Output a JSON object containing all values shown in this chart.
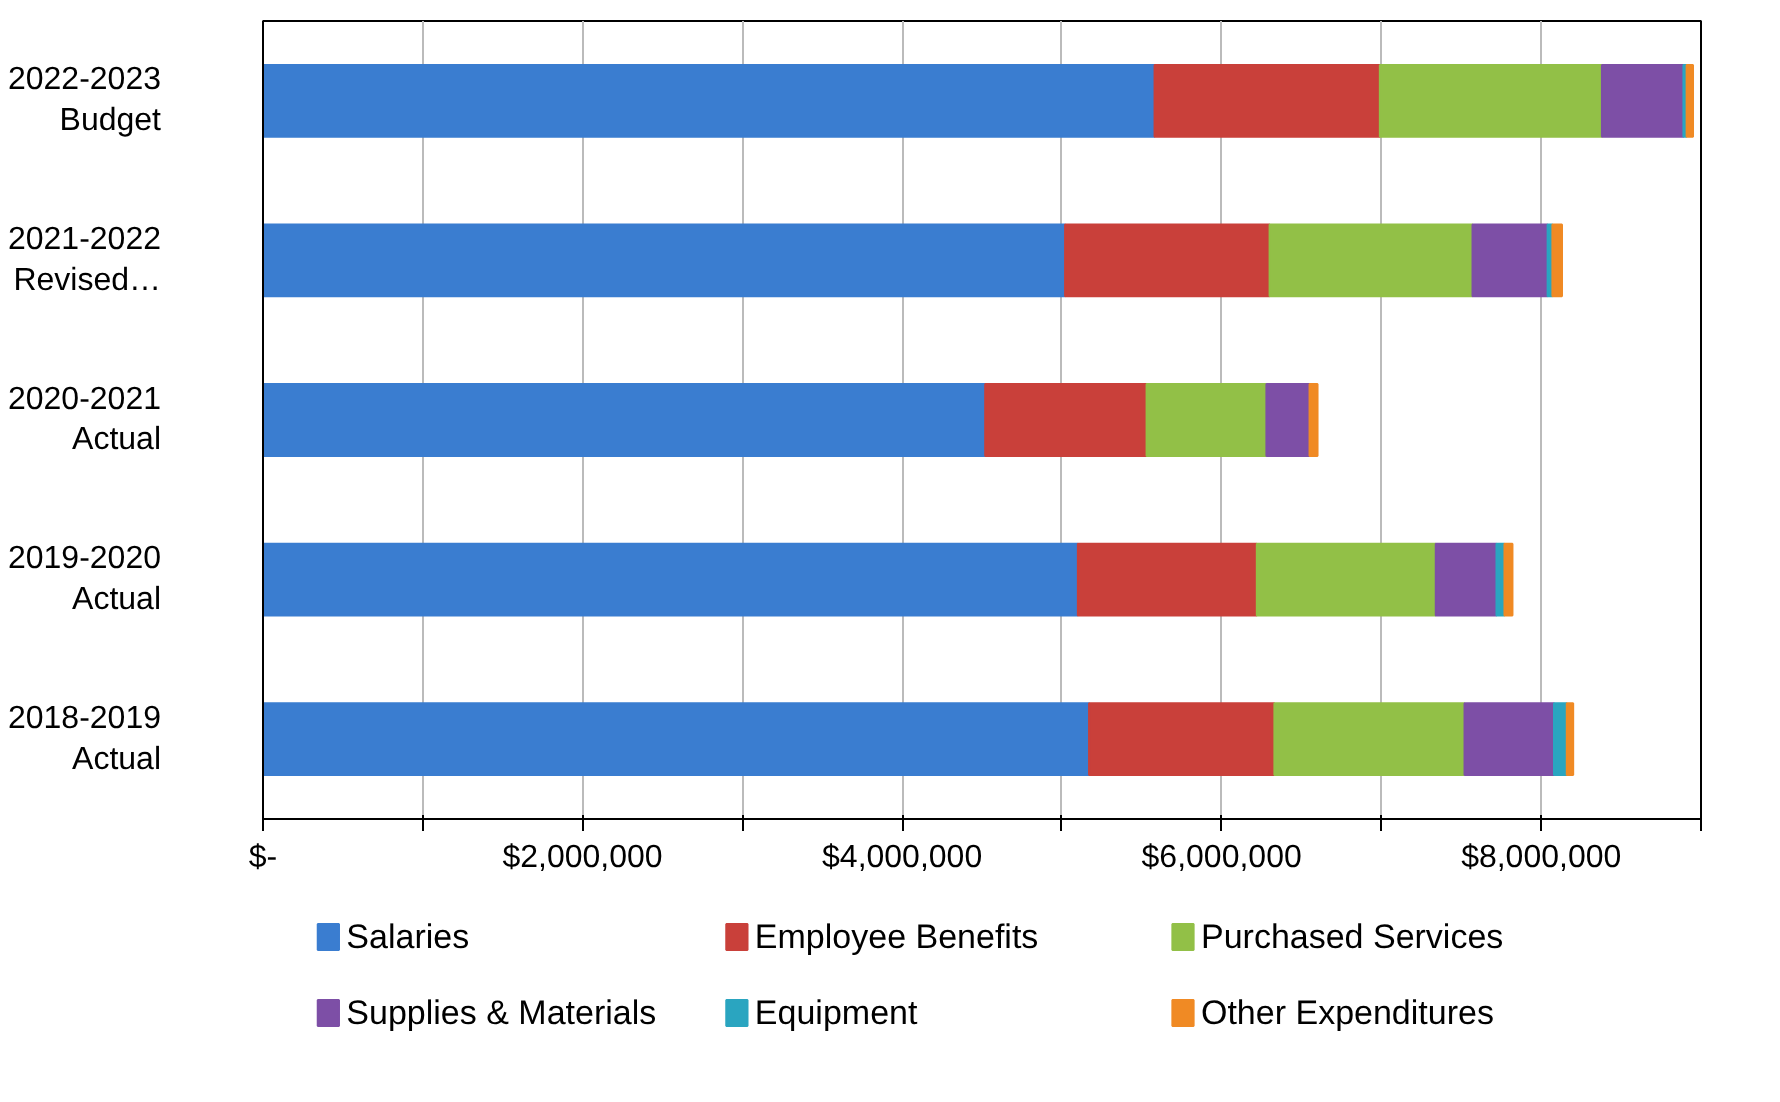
{
  "chart_data": {
    "type": "bar",
    "orientation": "horizontal",
    "stacked": true,
    "categories": [
      "2022-2023\nBudget",
      "2021-2022\nRevised…",
      "2020-2021\nActual",
      "2019-2020\nActual",
      "2018-2019\nActual"
    ],
    "series": [
      {
        "name": "Salaries",
        "color": "#3a7dd0",
        "values": [
          5580000,
          5020000,
          4520000,
          5100000,
          5170000
        ]
      },
      {
        "name": "Employee Benefits",
        "color": "#c9403a",
        "values": [
          1410000,
          1280000,
          1010000,
          1120000,
          1160000
        ]
      },
      {
        "name": "Purchased Services",
        "color": "#92c047",
        "values": [
          1390000,
          1270000,
          750000,
          1120000,
          1190000
        ]
      },
      {
        "name": "Supplies & Materials",
        "color": "#7d4fa6",
        "values": [
          510000,
          470000,
          270000,
          380000,
          560000
        ]
      },
      {
        "name": "Equipment",
        "color": "#2aa5c0",
        "values": [
          20000,
          30000,
          null,
          50000,
          80000
        ]
      },
      {
        "name": "Other Expenditures",
        "color": "#f08a24",
        "values": [
          40000,
          60000,
          50000,
          50000,
          40000
        ]
      }
    ],
    "xlim": [
      0,
      9000000
    ],
    "xticks": [
      {
        "value": 0,
        "label": "$-"
      },
      {
        "value": 1000000,
        "label": null
      },
      {
        "value": 2000000,
        "label": "$2,000,000"
      },
      {
        "value": 3000000,
        "label": null
      },
      {
        "value": 4000000,
        "label": "$4,000,000"
      },
      {
        "value": 5000000,
        "label": null
      },
      {
        "value": 6000000,
        "label": "$6,000,000"
      },
      {
        "value": 7000000,
        "label": null
      },
      {
        "value": 8000000,
        "label": "$8,000,000"
      },
      {
        "value": 9000000,
        "label": null
      }
    ],
    "grid": "x",
    "legend": "bottom"
  }
}
